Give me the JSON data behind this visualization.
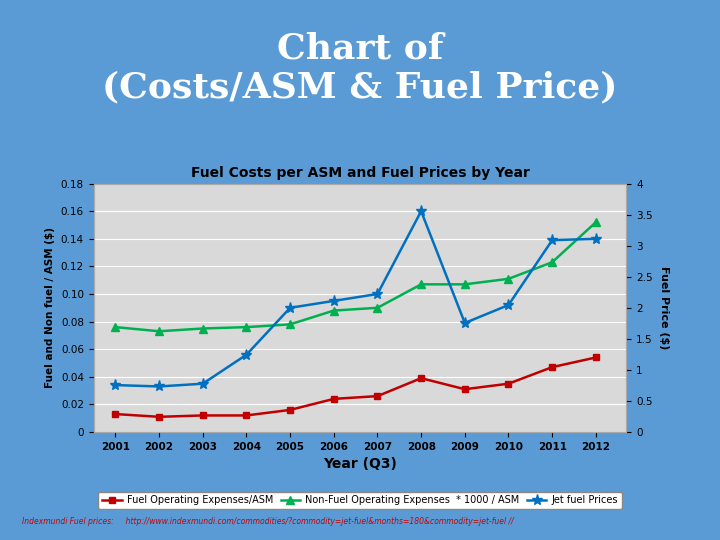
{
  "title_main_line1": "Chart of",
  "title_main_line2": "(Costs/ASM & Fuel Price)",
  "title_main_bg": "#5b9bd5",
  "chart_title": "Fuel Costs per ASM and Fuel Prices by Year",
  "xlabel": "Year (Q3)",
  "ylabel_left": "Fuel and Non fuel / ASM ($)",
  "ylabel_right": "Fuel Price ($)",
  "years": [
    2001,
    2002,
    2003,
    2004,
    2005,
    2006,
    2007,
    2008,
    2009,
    2010,
    2011,
    2012
  ],
  "fuel_operating": [
    0.013,
    0.011,
    0.012,
    0.012,
    0.016,
    0.024,
    0.026,
    0.039,
    0.031,
    0.035,
    0.047,
    0.054
  ],
  "non_fuel_operating": [
    0.076,
    0.073,
    0.075,
    0.076,
    0.078,
    0.088,
    0.09,
    0.107,
    0.107,
    0.111,
    0.123,
    0.152
  ],
  "jet_fuel_prices": [
    0.034,
    0.033,
    0.035,
    0.056,
    0.09,
    0.095,
    0.1,
    0.16,
    0.079,
    0.092,
    0.139,
    0.14
  ],
  "fuel_color": "#c00000",
  "nonfuel_color": "#00b050",
  "jet_color": "#0070c0",
  "ylim_left": [
    0,
    0.18
  ],
  "ylim_right": [
    0,
    4
  ],
  "yticks_left": [
    0,
    0.02,
    0.04,
    0.06,
    0.08,
    0.1,
    0.12,
    0.14,
    0.16,
    0.18
  ],
  "yticks_right": [
    0,
    0.5,
    1.0,
    1.5,
    2.0,
    2.5,
    3.0,
    3.5,
    4.0
  ],
  "legend_fuel": "Fuel Operating Expenses/ASM",
  "legend_nonfuel": "Non-Fuel Operating Expenses  * 1000 / ASM",
  "legend_jet": "Jet fuel Prices",
  "footer_text": "Indexmundi Fuel prices:     http://www.indexmundi.com/commodities/?commodity=jet-fuel&months=180&commodity=jet-fuel //",
  "chart_bg": "#d9d9d9",
  "header_bg": "#5b9bd5",
  "white_bg": "#ffffff",
  "outer_bg": "#c0c0c0"
}
